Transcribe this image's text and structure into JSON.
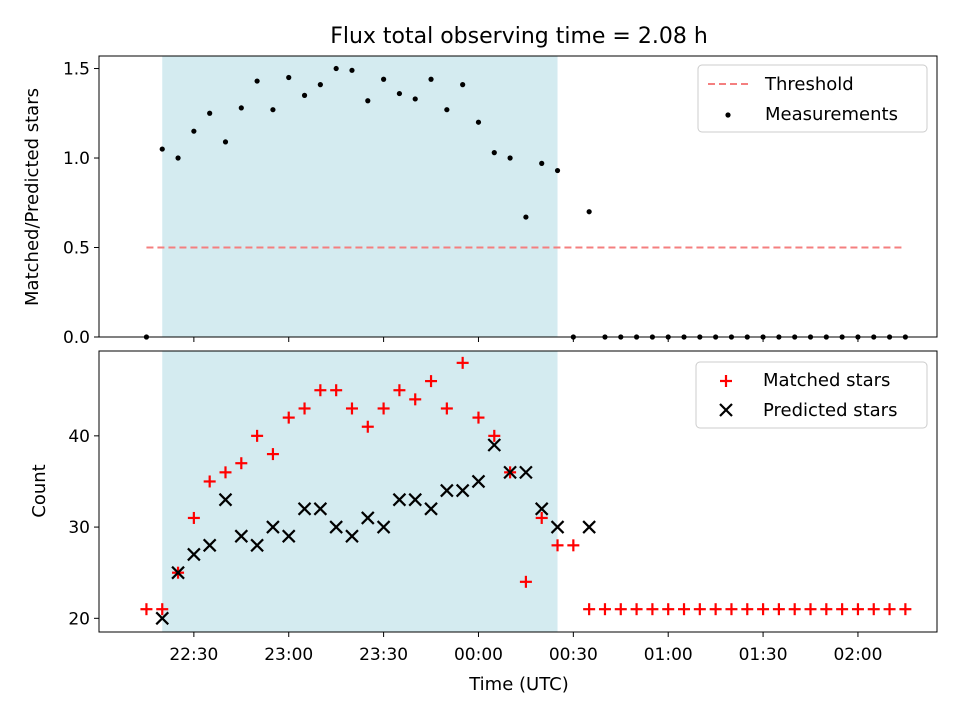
{
  "title": "Flux total observing time = 2.08 h",
  "colors": {
    "shade": "#d4ebf0",
    "threshold": "#f47f7f",
    "measurement": "#000000",
    "matched": "#ff0000",
    "predicted": "#000000"
  },
  "chart_data": [
    {
      "type": "scatter",
      "panel": "top",
      "ylabel": "Matched/Predicted stars",
      "xlabel": "",
      "ylim": [
        0,
        1.57
      ],
      "yticks": [
        "0.0",
        "0.5",
        "1.0",
        "1.5"
      ],
      "ytick_values": [
        0,
        0.5,
        1.0,
        1.5
      ],
      "shaded_span": {
        "start": "22:20",
        "end": "00:25"
      },
      "legend": {
        "placement": "top-right",
        "entries": [
          "Threshold",
          "Measurements"
        ]
      },
      "threshold": {
        "name": "Threshold",
        "value": 0.5,
        "x_start": "22:15",
        "x_end": "02:15"
      },
      "series": [
        {
          "name": "Measurements",
          "x": [
            "22:15",
            "22:20",
            "22:25",
            "22:30",
            "22:35",
            "22:40",
            "22:45",
            "22:50",
            "22:55",
            "23:00",
            "23:05",
            "23:10",
            "23:15",
            "23:20",
            "23:25",
            "23:30",
            "23:35",
            "23:40",
            "23:45",
            "23:50",
            "23:55",
            "00:00",
            "00:05",
            "00:10",
            "00:15",
            "00:20",
            "00:25",
            "00:30",
            "00:35",
            "00:40",
            "00:45",
            "00:50",
            "00:55",
            "01:00",
            "01:05",
            "01:10",
            "01:15",
            "01:20",
            "01:25",
            "01:30",
            "01:35",
            "01:40",
            "01:45",
            "01:50",
            "01:55",
            "02:00",
            "02:05",
            "02:10",
            "02:15"
          ],
          "y": [
            0.0,
            1.05,
            1.0,
            1.15,
            1.25,
            1.09,
            1.28,
            1.43,
            1.27,
            1.45,
            1.35,
            1.41,
            1.5,
            1.49,
            1.32,
            1.44,
            1.36,
            1.33,
            1.44,
            1.27,
            1.41,
            1.2,
            1.03,
            1.0,
            0.67,
            0.97,
            0.93,
            0.0,
            0.7,
            0.0,
            0.0,
            0.0,
            0.0,
            0.0,
            0.0,
            0.0,
            0.0,
            0.0,
            0.0,
            0.0,
            0.0,
            0.0,
            0.0,
            0.0,
            0.0,
            0.0,
            0.0,
            0.0,
            0.0
          ]
        }
      ]
    },
    {
      "type": "scatter",
      "panel": "bottom",
      "ylabel": "Count",
      "xlabel": "Time (UTC)",
      "ylim": [
        18.5,
        49.3
      ],
      "yticks": [
        "20",
        "30",
        "40"
      ],
      "ytick_values": [
        20,
        30,
        40
      ],
      "xlim": [
        "22:00",
        "02:25"
      ],
      "xticks": [
        "22:30",
        "23:00",
        "23:30",
        "00:00",
        "00:30",
        "01:00",
        "01:30",
        "02:00"
      ],
      "shaded_span": {
        "start": "22:20",
        "end": "00:25"
      },
      "legend": {
        "placement": "top-right",
        "entries": [
          "Matched stars",
          "Predicted stars"
        ]
      },
      "series": [
        {
          "name": "Matched stars",
          "marker": "plus",
          "x": [
            "22:15",
            "22:20",
            "22:25",
            "22:30",
            "22:35",
            "22:40",
            "22:45",
            "22:50",
            "22:55",
            "23:00",
            "23:05",
            "23:10",
            "23:15",
            "23:20",
            "23:25",
            "23:30",
            "23:35",
            "23:40",
            "23:45",
            "23:50",
            "23:55",
            "00:00",
            "00:05",
            "00:10",
            "00:15",
            "00:20",
            "00:25",
            "00:30",
            "00:35",
            "00:40",
            "00:45",
            "00:50",
            "00:55",
            "01:00",
            "01:05",
            "01:10",
            "01:15",
            "01:20",
            "01:25",
            "01:30",
            "01:35",
            "01:40",
            "01:45",
            "01:50",
            "01:55",
            "02:00",
            "02:05",
            "02:10",
            "02:15"
          ],
          "y": [
            21,
            21,
            25,
            31,
            35,
            36,
            37,
            40,
            38,
            42,
            43,
            45,
            45,
            43,
            41,
            43,
            45,
            44,
            46,
            43,
            48,
            42,
            40,
            36,
            24,
            31,
            28,
            28,
            21,
            21,
            21,
            21,
            21,
            21,
            21,
            21,
            21,
            21,
            21,
            21,
            21,
            21,
            21,
            21,
            21,
            21,
            21,
            21,
            21
          ]
        },
        {
          "name": "Predicted stars",
          "marker": "x",
          "x": [
            "22:20",
            "22:25",
            "22:30",
            "22:35",
            "22:40",
            "22:45",
            "22:50",
            "22:55",
            "23:00",
            "23:05",
            "23:10",
            "23:15",
            "23:20",
            "23:25",
            "23:30",
            "23:35",
            "23:40",
            "23:45",
            "23:50",
            "23:55",
            "00:00",
            "00:05",
            "00:10",
            "00:15",
            "00:20",
            "00:25",
            "00:35"
          ],
          "y": [
            20,
            25,
            27,
            28,
            33,
            29,
            28,
            30,
            29,
            32,
            32,
            30,
            29,
            31,
            30,
            33,
            33,
            32,
            34,
            34,
            35,
            39,
            36,
            36,
            32,
            30,
            30
          ]
        }
      ]
    }
  ]
}
